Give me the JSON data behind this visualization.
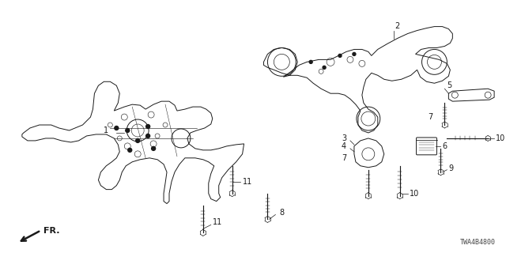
{
  "bg_color": "#ffffff",
  "fig_width": 6.4,
  "fig_height": 3.2,
  "dpi": 100,
  "watermark": "TWA4B4800",
  "line_color": "#1a1a1a",
  "label_fontsize": 7,
  "watermark_fontsize": 6
}
